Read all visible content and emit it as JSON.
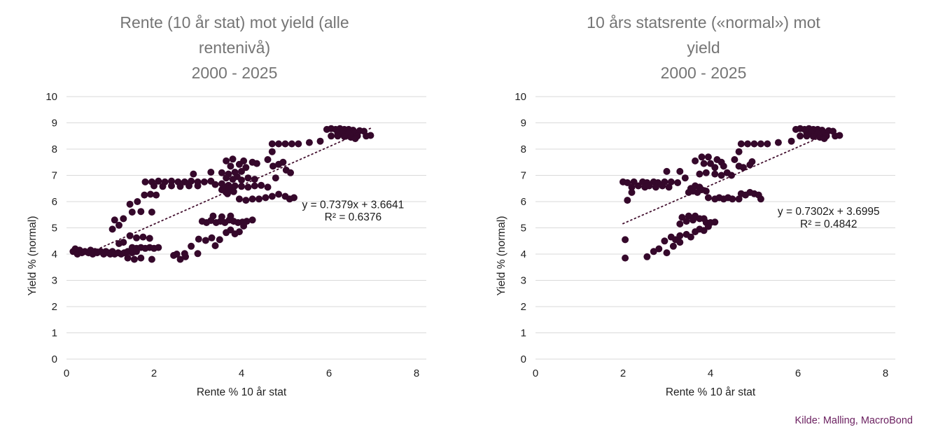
{
  "source": {
    "text": "Kilde: Malling, MacroBond",
    "color": "#6a1f5f"
  },
  "style": {
    "point_color": "#35082b",
    "trend_color": "#43102f",
    "grid_color": "#d9d9d9",
    "title_color": "#757575"
  },
  "chart_data": [
    {
      "type": "scatter",
      "title_lines": [
        "Rente (10 år stat) mot yield (alle",
        "rentenivå)",
        "2000 - 2025"
      ],
      "xlabel": "Rente % 10 år stat",
      "ylabel": "Yield % (normal)",
      "xlim": [
        0,
        8
      ],
      "ylim": [
        0,
        10
      ],
      "xticks": [
        0,
        2,
        4,
        6,
        8
      ],
      "yticks": [
        0,
        1,
        2,
        3,
        4,
        5,
        6,
        7,
        8,
        9,
        10
      ],
      "grid": "horizontal",
      "legend": "none",
      "trendline": {
        "slope": 0.7379,
        "intercept": 3.6641,
        "x_start": 0.6,
        "x_end": 6.95,
        "equation_label": "y = 0.7379x + 3.6641",
        "r2_label": "R² = 0.6376",
        "label_x": 6.55,
        "label_y1": 5.75,
        "label_y2": 5.28
      },
      "points": [
        [
          0.15,
          4.1
        ],
        [
          0.2,
          4.2
        ],
        [
          0.25,
          4.0
        ],
        [
          0.3,
          4.15
        ],
        [
          0.35,
          4.05
        ],
        [
          0.42,
          4.1
        ],
        [
          0.5,
          4.05
        ],
        [
          0.55,
          4.15
        ],
        [
          0.6,
          4.0
        ],
        [
          0.65,
          4.1
        ],
        [
          0.7,
          4.05
        ],
        [
          0.78,
          4.1
        ],
        [
          0.85,
          4.0
        ],
        [
          0.9,
          4.1
        ],
        [
          0.95,
          4.05
        ],
        [
          1.0,
          4.0
        ],
        [
          1.05,
          4.1
        ],
        [
          1.1,
          4.0
        ],
        [
          1.18,
          4.05
        ],
        [
          1.25,
          4.0
        ],
        [
          1.32,
          4.05
        ],
        [
          1.4,
          4.1
        ],
        [
          1.5,
          4.05
        ],
        [
          1.6,
          4.1
        ],
        [
          1.5,
          4.25
        ],
        [
          1.6,
          4.22
        ],
        [
          1.7,
          4.25
        ],
        [
          1.8,
          4.22
        ],
        [
          1.9,
          4.25
        ],
        [
          2.0,
          4.22
        ],
        [
          2.1,
          4.25
        ],
        [
          1.4,
          3.85
        ],
        [
          1.55,
          3.8
        ],
        [
          1.7,
          3.85
        ],
        [
          1.95,
          3.8
        ],
        [
          2.45,
          3.95
        ],
        [
          2.6,
          3.8
        ],
        [
          2.72,
          3.9
        ],
        [
          1.2,
          4.4
        ],
        [
          1.3,
          4.45
        ],
        [
          1.45,
          4.7
        ],
        [
          1.6,
          4.62
        ],
        [
          1.75,
          4.65
        ],
        [
          1.9,
          4.6
        ],
        [
          1.05,
          4.95
        ],
        [
          1.2,
          5.1
        ],
        [
          1.1,
          5.3
        ],
        [
          1.3,
          5.35
        ],
        [
          1.5,
          5.6
        ],
        [
          1.7,
          5.62
        ],
        [
          1.95,
          5.6
        ],
        [
          1.45,
          5.9
        ],
        [
          1.62,
          6.0
        ],
        [
          1.78,
          6.25
        ],
        [
          1.92,
          6.28
        ],
        [
          2.05,
          6.25
        ],
        [
          1.8,
          6.75
        ],
        [
          1.95,
          6.75
        ],
        [
          2.1,
          6.78
        ],
        [
          2.25,
          6.75
        ],
        [
          2.4,
          6.78
        ],
        [
          2.55,
          6.75
        ],
        [
          2.7,
          6.75
        ],
        [
          2.85,
          6.78
        ],
        [
          3.0,
          6.75
        ],
        [
          3.15,
          6.75
        ],
        [
          3.3,
          6.78
        ],
        [
          2.0,
          6.6
        ],
        [
          2.2,
          6.58
        ],
        [
          2.4,
          6.6
        ],
        [
          2.6,
          6.58
        ],
        [
          2.8,
          6.6
        ],
        [
          3.0,
          6.6
        ],
        [
          3.4,
          6.65
        ],
        [
          3.55,
          6.68
        ],
        [
          3.7,
          6.62
        ],
        [
          3.85,
          6.6
        ],
        [
          4.0,
          6.58
        ],
        [
          4.15,
          6.55
        ],
        [
          4.3,
          6.6
        ],
        [
          4.45,
          6.62
        ],
        [
          4.6,
          6.55
        ],
        [
          3.55,
          6.45
        ],
        [
          3.65,
          6.35
        ],
        [
          3.75,
          6.45
        ],
        [
          3.62,
          6.52
        ],
        [
          3.72,
          6.5
        ],
        [
          3.82,
          6.38
        ],
        [
          3.68,
          6.3
        ],
        [
          3.95,
          6.1
        ],
        [
          4.1,
          6.05
        ],
        [
          4.25,
          6.1
        ],
        [
          4.4,
          6.1
        ],
        [
          4.55,
          6.15
        ],
        [
          4.7,
          6.2
        ],
        [
          4.85,
          6.28
        ],
        [
          5.0,
          6.2
        ],
        [
          5.1,
          6.1
        ],
        [
          5.2,
          6.15
        ],
        [
          3.1,
          5.25
        ],
        [
          3.2,
          5.2
        ],
        [
          3.3,
          5.28
        ],
        [
          3.42,
          5.2
        ],
        [
          3.52,
          5.25
        ],
        [
          3.62,
          5.2
        ],
        [
          3.72,
          5.3
        ],
        [
          3.82,
          5.25
        ],
        [
          3.92,
          5.2
        ],
        [
          4.02,
          5.22
        ],
        [
          4.12,
          5.25
        ],
        [
          4.25,
          5.3
        ],
        [
          3.35,
          5.45
        ],
        [
          3.55,
          5.42
        ],
        [
          3.75,
          5.45
        ],
        [
          2.52,
          4.0
        ],
        [
          2.7,
          4.02
        ],
        [
          2.85,
          4.3
        ],
        [
          3.0,
          4.02
        ],
        [
          3.02,
          4.57
        ],
        [
          3.18,
          4.52
        ],
        [
          3.32,
          4.62
        ],
        [
          3.4,
          4.32
        ],
        [
          3.5,
          4.55
        ],
        [
          3.65,
          4.82
        ],
        [
          3.75,
          4.92
        ],
        [
          3.85,
          4.77
        ],
        [
          3.95,
          4.85
        ],
        [
          4.05,
          5.07
        ],
        [
          3.65,
          7.55
        ],
        [
          3.8,
          7.62
        ],
        [
          3.75,
          7.35
        ],
        [
          3.95,
          7.42
        ],
        [
          4.05,
          7.55
        ],
        [
          4.1,
          7.3
        ],
        [
          4.25,
          7.5
        ],
        [
          4.35,
          7.45
        ],
        [
          3.65,
          6.9
        ],
        [
          3.8,
          6.85
        ],
        [
          3.9,
          6.95
        ],
        [
          4.0,
          6.82
        ],
        [
          4.15,
          6.9
        ],
        [
          4.3,
          6.85
        ],
        [
          3.55,
          7.1
        ],
        [
          3.7,
          7.05
        ],
        [
          3.85,
          7.12
        ],
        [
          4.0,
          7.15
        ],
        [
          2.9,
          7.05
        ],
        [
          3.3,
          7.12
        ],
        [
          4.6,
          7.6
        ],
        [
          4.72,
          7.35
        ],
        [
          4.85,
          7.42
        ],
        [
          4.95,
          7.5
        ],
        [
          5.02,
          7.2
        ],
        [
          5.12,
          7.1
        ],
        [
          4.78,
          6.9
        ],
        [
          4.7,
          7.9
        ],
        [
          4.7,
          8.2
        ],
        [
          4.85,
          8.2
        ],
        [
          5.0,
          8.2
        ],
        [
          5.15,
          8.2
        ],
        [
          5.3,
          8.2
        ],
        [
          5.55,
          8.25
        ],
        [
          5.8,
          8.3
        ],
        [
          5.95,
          8.75
        ],
        [
          6.05,
          8.78
        ],
        [
          6.15,
          8.75
        ],
        [
          6.25,
          8.78
        ],
        [
          6.35,
          8.75
        ],
        [
          6.45,
          8.75
        ],
        [
          6.55,
          8.72
        ],
        [
          6.2,
          8.6
        ],
        [
          6.3,
          8.62
        ],
        [
          6.45,
          8.6
        ],
        [
          6.6,
          8.62
        ],
        [
          6.7,
          8.7
        ],
        [
          6.8,
          8.68
        ],
        [
          6.05,
          8.5
        ],
        [
          6.2,
          8.5
        ],
        [
          6.35,
          8.48
        ],
        [
          6.5,
          8.45
        ],
        [
          6.65,
          8.5
        ],
        [
          6.85,
          8.5
        ],
        [
          6.95,
          8.52
        ],
        [
          6.6,
          8.4
        ]
      ]
    },
    {
      "type": "scatter",
      "title_lines": [
        "10 års statsrente («normal») mot",
        "yield",
        "2000 - 2025"
      ],
      "xlabel": "Rente % 10 år stat",
      "ylabel": "Yield % (normal)",
      "xlim": [
        0,
        8
      ],
      "ylim": [
        0,
        10
      ],
      "xticks": [
        0,
        2,
        4,
        6,
        8
      ],
      "yticks": [
        0,
        1,
        2,
        3,
        4,
        5,
        6,
        7,
        8,
        9,
        10
      ],
      "grid": "horizontal",
      "legend": "none",
      "trendline": {
        "slope": 0.7302,
        "intercept": 3.6995,
        "x_start": 2.0,
        "x_end": 6.9,
        "equation_label": "y = 0.7302x + 3.6995",
        "r2_label": "R² = 0.4842",
        "label_x": 6.7,
        "label_y1": 5.5,
        "label_y2": 5.02
      },
      "points": [
        [
          5.95,
          8.75
        ],
        [
          6.05,
          8.78
        ],
        [
          6.15,
          8.75
        ],
        [
          6.25,
          8.78
        ],
        [
          6.35,
          8.75
        ],
        [
          6.45,
          8.75
        ],
        [
          6.55,
          8.72
        ],
        [
          6.2,
          8.6
        ],
        [
          6.3,
          8.62
        ],
        [
          6.45,
          8.6
        ],
        [
          6.6,
          8.62
        ],
        [
          6.7,
          8.7
        ],
        [
          6.8,
          8.68
        ],
        [
          6.05,
          8.5
        ],
        [
          6.2,
          8.5
        ],
        [
          6.35,
          8.48
        ],
        [
          6.5,
          8.45
        ],
        [
          6.65,
          8.5
        ],
        [
          6.85,
          8.5
        ],
        [
          6.95,
          8.52
        ],
        [
          6.6,
          8.4
        ],
        [
          4.7,
          8.2
        ],
        [
          4.85,
          8.2
        ],
        [
          5.0,
          8.2
        ],
        [
          5.15,
          8.2
        ],
        [
          5.3,
          8.2
        ],
        [
          5.55,
          8.25
        ],
        [
          5.85,
          8.3
        ],
        [
          4.65,
          7.9
        ],
        [
          3.65,
          7.55
        ],
        [
          3.8,
          7.7
        ],
        [
          3.95,
          7.7
        ],
        [
          3.85,
          7.45
        ],
        [
          4.0,
          7.45
        ],
        [
          4.15,
          7.6
        ],
        [
          4.25,
          7.5
        ],
        [
          4.1,
          7.3
        ],
        [
          4.3,
          7.35
        ],
        [
          4.55,
          7.6
        ],
        [
          4.65,
          7.35
        ],
        [
          4.75,
          7.3
        ],
        [
          4.9,
          7.4
        ],
        [
          4.95,
          7.52
        ],
        [
          3.0,
          7.15
        ],
        [
          3.3,
          7.15
        ],
        [
          3.42,
          6.9
        ],
        [
          3.75,
          7.05
        ],
        [
          3.9,
          7.1
        ],
        [
          4.1,
          7.05
        ],
        [
          4.25,
          7.0
        ],
        [
          4.38,
          7.1
        ],
        [
          4.48,
          7.0
        ],
        [
          2.0,
          6.75
        ],
        [
          2.1,
          6.72
        ],
        [
          2.25,
          6.75
        ],
        [
          2.45,
          6.75
        ],
        [
          2.55,
          6.72
        ],
        [
          2.7,
          6.75
        ],
        [
          2.8,
          6.72
        ],
        [
          2.95,
          6.75
        ],
        [
          3.1,
          6.75
        ],
        [
          3.25,
          6.72
        ],
        [
          2.2,
          6.55
        ],
        [
          2.35,
          6.6
        ],
        [
          2.5,
          6.55
        ],
        [
          2.6,
          6.6
        ],
        [
          2.75,
          6.55
        ],
        [
          2.9,
          6.6
        ],
        [
          3.05,
          6.55
        ],
        [
          2.1,
          6.05
        ],
        [
          2.2,
          6.35
        ],
        [
          3.55,
          6.5
        ],
        [
          3.65,
          6.6
        ],
        [
          3.75,
          6.55
        ],
        [
          3.6,
          6.4
        ],
        [
          3.7,
          6.35
        ],
        [
          3.8,
          6.45
        ],
        [
          3.9,
          6.4
        ],
        [
          3.5,
          6.35
        ],
        [
          3.95,
          6.15
        ],
        [
          4.1,
          6.1
        ],
        [
          4.2,
          6.15
        ],
        [
          4.3,
          6.1
        ],
        [
          4.4,
          6.15
        ],
        [
          4.5,
          6.1
        ],
        [
          4.65,
          6.1
        ],
        [
          4.7,
          6.3
        ],
        [
          4.8,
          6.25
        ],
        [
          4.9,
          6.35
        ],
        [
          5.0,
          6.3
        ],
        [
          5.1,
          6.25
        ],
        [
          5.15,
          6.1
        ],
        [
          3.35,
          5.4
        ],
        [
          3.45,
          5.25
        ],
        [
          3.5,
          5.45
        ],
        [
          3.6,
          5.3
        ],
        [
          3.65,
          5.45
        ],
        [
          3.75,
          5.35
        ],
        [
          3.85,
          5.35
        ],
        [
          3.9,
          5.2
        ],
        [
          4.0,
          5.2
        ],
        [
          4.1,
          5.22
        ],
        [
          3.3,
          5.15
        ],
        [
          2.95,
          4.5
        ],
        [
          3.1,
          4.65
        ],
        [
          3.2,
          4.55
        ],
        [
          3.3,
          4.7
        ],
        [
          3.45,
          4.75
        ],
        [
          3.55,
          4.65
        ],
        [
          3.65,
          4.85
        ],
        [
          3.75,
          4.95
        ],
        [
          3.85,
          4.9
        ],
        [
          3.95,
          5.05
        ],
        [
          2.55,
          3.9
        ],
        [
          2.7,
          4.1
        ],
        [
          2.82,
          4.2
        ],
        [
          3.0,
          4.05
        ],
        [
          3.15,
          4.3
        ],
        [
          3.3,
          4.45
        ],
        [
          2.05,
          4.55
        ],
        [
          2.05,
          3.85
        ]
      ]
    }
  ]
}
